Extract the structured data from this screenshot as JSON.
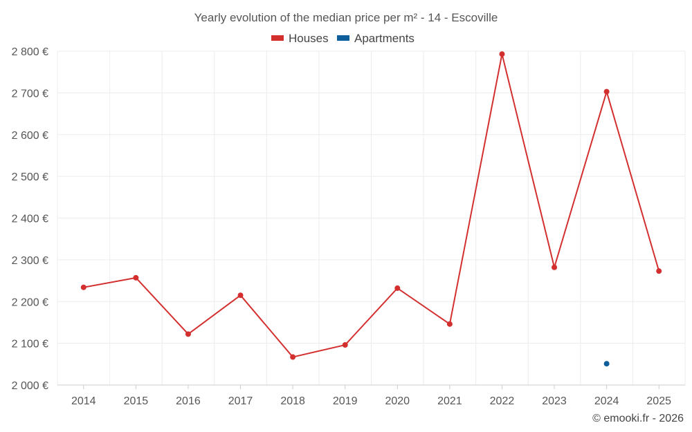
{
  "chart_data": {
    "type": "line",
    "title": "Yearly evolution of the median price per m² - 14 - Escoville",
    "categories": [
      "2014",
      "2015",
      "2016",
      "2017",
      "2018",
      "2019",
      "2020",
      "2021",
      "2022",
      "2023",
      "2024",
      "2025"
    ],
    "series": [
      {
        "name": "Houses",
        "color": "#d32f2f",
        "values": [
          2234,
          2257,
          2122,
          2215,
          2067,
          2096,
          2232,
          2146,
          2793,
          2282,
          2703,
          2273
        ]
      },
      {
        "name": "Apartments",
        "color": "#0d5e9a",
        "values": [
          null,
          null,
          null,
          null,
          null,
          null,
          null,
          null,
          null,
          null,
          2051,
          null
        ]
      }
    ],
    "y_ticks": [
      2000,
      2100,
      2200,
      2300,
      2400,
      2500,
      2600,
      2700,
      2800
    ],
    "y_tick_labels": [
      "2 000 €",
      "2 100 €",
      "2 200 €",
      "2 300 €",
      "2 400 €",
      "2 500 €",
      "2 600 €",
      "2 700 €",
      "2 800 €"
    ],
    "ylim": [
      2000,
      2800
    ],
    "grid": true,
    "legend_position": "top-center"
  },
  "credit": "© emooki.fr - 2026"
}
